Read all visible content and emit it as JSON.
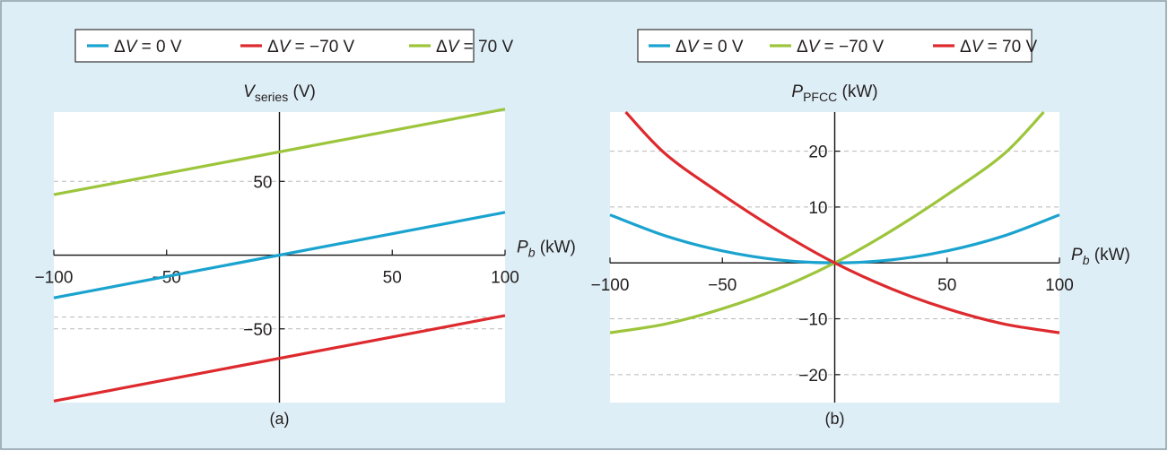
{
  "colors": {
    "background": "#deeef6",
    "border": "#8a9aa3",
    "plot_area": "#ffffff",
    "blue": "#1aa3cf",
    "red": "#dd2a2e",
    "green": "#9cc53b",
    "grid": "#b9b9b9",
    "text": "#231f20"
  },
  "chart_data": [
    {
      "type": "line",
      "panel_label": "(a)",
      "ylabel_main": "V",
      "ylabel_sub": "series",
      "ylabel_unit": " (V)",
      "xlabel_main": "P",
      "xlabel_sub": "b",
      "xlabel_unit": " (kW)",
      "xlim": [
        -100,
        100
      ],
      "ylim": [
        -100,
        97
      ],
      "x_ticks": [
        -100,
        -50,
        50,
        100
      ],
      "x_tick_labels": [
        "−100",
        "−50",
        "50",
        "100"
      ],
      "y_ticks": [
        -50,
        50
      ],
      "y_tick_labels": [
        "−50",
        "50"
      ],
      "grid_y": [
        -50,
        -42,
        50
      ],
      "legend": [
        {
          "label": "ΔV = 0 V",
          "color": "blue"
        },
        {
          "label": "ΔV = −70 V",
          "color": "red"
        },
        {
          "label": "ΔV = 70 V",
          "color": "green"
        }
      ],
      "series": [
        {
          "name": "ΔV = 0 V",
          "color": "blue",
          "x": [
            -100,
            100
          ],
          "y": [
            -29,
            29
          ]
        },
        {
          "name": "ΔV = −70 V",
          "color": "red",
          "x": [
            -100,
            100
          ],
          "y": [
            -99,
            -41
          ]
        },
        {
          "name": "ΔV = 70 V",
          "color": "green",
          "x": [
            -100,
            100
          ],
          "y": [
            41,
            99
          ]
        }
      ]
    },
    {
      "type": "line",
      "panel_label": "(b)",
      "ylabel_main": "P",
      "ylabel_sub": "PFCC",
      "ylabel_unit": " (kW)",
      "xlabel_main": "P",
      "xlabel_sub": "b",
      "xlabel_unit": " (kW)",
      "xlim": [
        -100,
        100
      ],
      "ylim": [
        -25,
        27
      ],
      "x_ticks": [
        -100,
        -50,
        50,
        100
      ],
      "x_tick_labels": [
        "−100",
        "−50",
        "50",
        "100"
      ],
      "y_ticks": [
        -20,
        -10,
        10,
        20
      ],
      "y_tick_labels": [
        "−20",
        "−10",
        "10",
        "20"
      ],
      "grid_y": [
        -20,
        -10,
        10,
        20
      ],
      "legend": [
        {
          "label": "ΔV = 0 V",
          "color": "blue"
        },
        {
          "label": "ΔV = −70 V",
          "color": "green"
        },
        {
          "label": "ΔV = 70 V",
          "color": "red"
        }
      ],
      "series": [
        {
          "name": "ΔV = 0 V",
          "color": "blue",
          "x": [
            -100,
            -75,
            -50,
            -25,
            0,
            25,
            50,
            75,
            100
          ],
          "y": [
            8.6,
            4.8,
            2.15,
            0.54,
            0,
            0.54,
            2.15,
            4.8,
            8.6
          ]
        },
        {
          "name": "ΔV = −70 V",
          "color": "green",
          "x": [
            -100,
            -75,
            -50,
            -25,
            0,
            25,
            50,
            75,
            93
          ],
          "y": [
            -12.5,
            -10.9,
            -8.2,
            -4.6,
            0,
            5.7,
            12.2,
            19.4,
            27
          ]
        },
        {
          "name": "ΔV = 70 V",
          "color": "red",
          "x": [
            -93,
            -75,
            -50,
            -25,
            0,
            25,
            50,
            75,
            100
          ],
          "y": [
            27,
            19.4,
            12.2,
            5.7,
            0,
            -4.6,
            -8.2,
            -10.9,
            -12.5
          ]
        }
      ]
    }
  ]
}
